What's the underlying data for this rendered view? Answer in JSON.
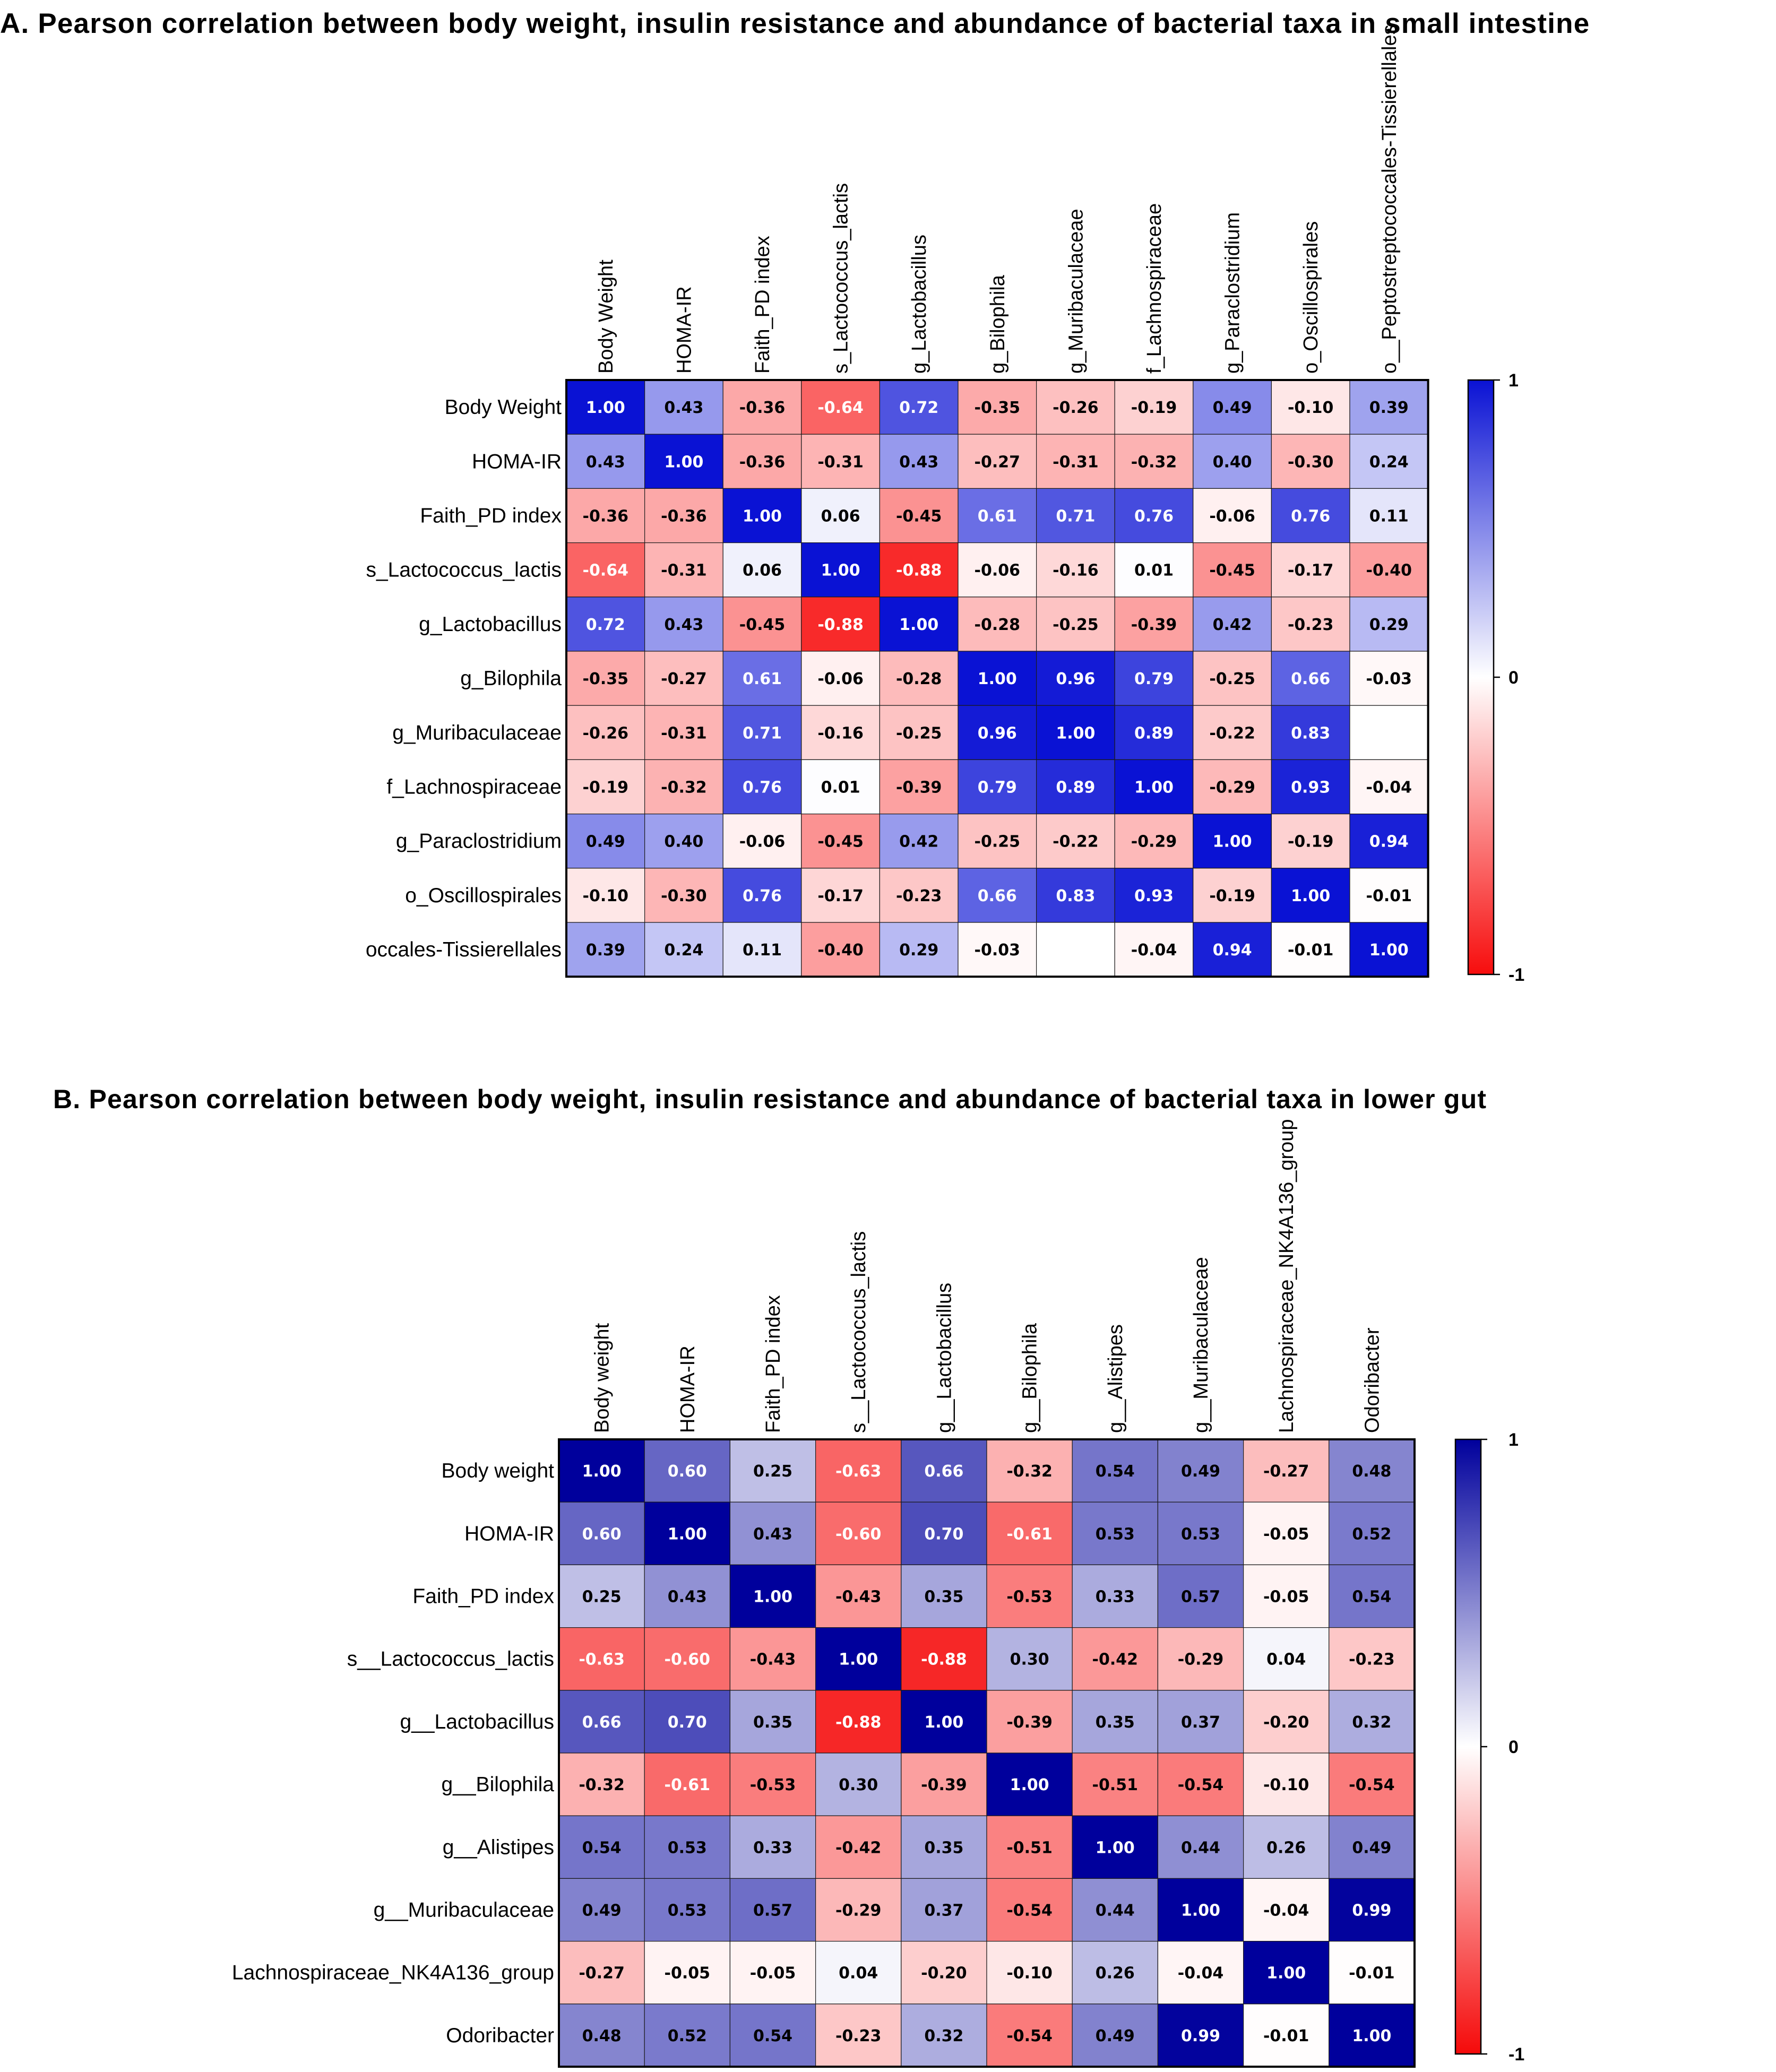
{
  "chart_data": [
    {
      "type": "heatmap",
      "title": "A. Pearson correlation between body weight, insulin resistance and abundance of bacterial taxa in small intestine",
      "columns": [
        "Body Weight",
        "HOMA-IR",
        "Faith_PD index",
        "s_Lactococcus_lactis",
        "g_Lactobacillus",
        "g_Bilophila",
        "g_Muribaculaceae",
        "f_Lachnospiraceae",
        "g_Paraclostridium",
        "o_Oscillospirales",
        "o__Peptostreptococcales-Tissierellales"
      ],
      "rows": [
        "Body Weight",
        "HOMA-IR",
        "Faith_PD index",
        "s_Lactococcus_lactis",
        "g_Lactobacillus",
        "g_Bilophila",
        "g_Muribaculaceae",
        "f_Lachnospiraceae",
        "g_Paraclostridium",
        "o_Oscillospirales",
        "occales-Tissierellales"
      ],
      "values": [
        [
          1.0,
          0.43,
          -0.36,
          -0.64,
          0.72,
          -0.35,
          -0.26,
          -0.19,
          0.49,
          -0.1,
          0.39
        ],
        [
          0.43,
          1.0,
          -0.36,
          -0.31,
          0.43,
          -0.27,
          -0.31,
          -0.32,
          0.4,
          -0.3,
          0.24
        ],
        [
          -0.36,
          -0.36,
          1.0,
          0.06,
          -0.45,
          0.61,
          0.71,
          0.76,
          -0.06,
          0.76,
          0.11
        ],
        [
          -0.64,
          -0.31,
          0.06,
          1.0,
          -0.88,
          -0.06,
          -0.16,
          0.01,
          -0.45,
          -0.17,
          -0.4
        ],
        [
          0.72,
          0.43,
          -0.45,
          -0.88,
          1.0,
          -0.28,
          -0.25,
          -0.39,
          0.42,
          -0.23,
          0.29
        ],
        [
          -0.35,
          -0.27,
          0.61,
          -0.06,
          -0.28,
          1.0,
          0.96,
          0.79,
          -0.25,
          0.66,
          -0.03
        ],
        [
          -0.26,
          -0.31,
          0.71,
          -0.16,
          -0.25,
          0.96,
          1.0,
          0.89,
          -0.22,
          0.83,
          null
        ],
        [
          -0.19,
          -0.32,
          0.76,
          0.01,
          -0.39,
          0.79,
          0.89,
          1.0,
          -0.29,
          0.93,
          -0.04
        ],
        [
          0.49,
          0.4,
          -0.06,
          -0.45,
          0.42,
          -0.25,
          -0.22,
          -0.29,
          1.0,
          -0.19,
          0.94
        ],
        [
          -0.1,
          -0.3,
          0.76,
          -0.17,
          -0.23,
          0.66,
          0.83,
          0.93,
          -0.19,
          1.0,
          -0.01
        ],
        [
          0.39,
          0.24,
          0.11,
          -0.4,
          0.29,
          -0.03,
          null,
          -0.04,
          0.94,
          -0.01,
          1.0
        ]
      ],
      "colorbar": {
        "ticks": [
          "1",
          "0",
          "-1"
        ],
        "range": [
          -1,
          1
        ]
      },
      "colors": {
        "positive": "#0a12d4",
        "zero": "#ffffff",
        "negative": "#f70d0d"
      }
    },
    {
      "type": "heatmap",
      "title": "B. Pearson correlation between body weight, insulin resistance and abundance of bacterial taxa in lower gut",
      "columns": [
        "Body weight",
        "HOMA-IR",
        "Faith_PD index",
        "s__Lactococcus_lactis",
        "g__Lactobacillus",
        "g__Bilophila",
        "g__Alistipes",
        "g__Muribaculaceae",
        "Lachnospiraceae_NK4A136_group",
        "Odoribacter"
      ],
      "rows": [
        "Body weight",
        "HOMA-IR",
        "Faith_PD index",
        "s__Lactococcus_lactis",
        "g__Lactobacillus",
        "g__Bilophila",
        "g__Alistipes",
        "g__Muribaculaceae",
        "Lachnospiraceae_NK4A136_group",
        "Odoribacter"
      ],
      "values": [
        [
          1.0,
          0.6,
          0.25,
          -0.63,
          0.66,
          -0.32,
          0.54,
          0.49,
          -0.27,
          0.48
        ],
        [
          0.6,
          1.0,
          0.43,
          -0.6,
          0.7,
          -0.61,
          0.53,
          0.53,
          -0.05,
          0.52
        ],
        [
          0.25,
          0.43,
          1.0,
          -0.43,
          0.35,
          -0.53,
          0.33,
          0.57,
          -0.05,
          0.54
        ],
        [
          -0.63,
          -0.6,
          -0.43,
          1.0,
          -0.88,
          0.3,
          -0.42,
          -0.29,
          0.04,
          -0.23
        ],
        [
          0.66,
          0.7,
          0.35,
          -0.88,
          1.0,
          -0.39,
          0.35,
          0.37,
          -0.2,
          0.32
        ],
        [
          -0.32,
          -0.61,
          -0.53,
          0.3,
          -0.39,
          1.0,
          -0.51,
          -0.54,
          -0.1,
          -0.54
        ],
        [
          0.54,
          0.53,
          0.33,
          -0.42,
          0.35,
          -0.51,
          1.0,
          0.44,
          0.26,
          0.49
        ],
        [
          0.49,
          0.53,
          0.57,
          -0.29,
          0.37,
          -0.54,
          0.44,
          1.0,
          -0.04,
          0.99
        ],
        [
          -0.27,
          -0.05,
          -0.05,
          0.04,
          -0.2,
          -0.1,
          0.26,
          -0.04,
          1.0,
          -0.01
        ],
        [
          0.48,
          0.52,
          0.54,
          -0.23,
          0.32,
          -0.54,
          0.49,
          0.99,
          -0.01,
          1.0
        ]
      ],
      "colorbar": {
        "ticks": [
          "1",
          "0",
          "-1"
        ],
        "range": [
          -1,
          1
        ]
      },
      "colors": {
        "positive": "#00009c",
        "zero": "#ffffff",
        "negative": "#f50a0a"
      }
    }
  ]
}
